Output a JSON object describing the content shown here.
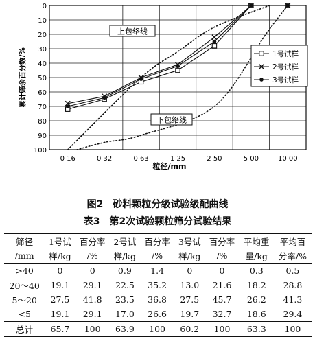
{
  "chart_data": {
    "type": "line",
    "x_categories": [
      "0 16",
      "0 32",
      "0 63",
      "1 25",
      "2 50",
      "5 00",
      "10 00"
    ],
    "xlabel": "粒径/mm",
    "ylabel": "累计筛余百分数/%",
    "y_ticks": [
      0,
      10,
      20,
      30,
      40,
      50,
      60,
      70,
      80,
      90,
      100
    ],
    "ylim": [
      0,
      100
    ],
    "y_inverted": true,
    "legend_position": "right",
    "series": [
      {
        "name": "1号试样",
        "marker": "square",
        "values": [
          72,
          65,
          53,
          45,
          28,
          0,
          0
        ]
      },
      {
        "name": "2号试样",
        "marker": "x",
        "values": [
          68,
          63,
          50,
          41,
          22,
          0,
          0
        ]
      },
      {
        "name": "3号试样",
        "marker": "dot",
        "values": [
          70,
          64,
          51,
          42,
          25,
          0,
          0
        ]
      }
    ],
    "envelope_upper": {
      "label": "上包络线",
      "x": [
        0,
        2,
        3,
        4,
        5.5
      ],
      "values": [
        100,
        50,
        32,
        15,
        0
      ]
    },
    "envelope_lower": {
      "label": "下包络线",
      "x": [
        0.25,
        1,
        2,
        4,
        5.4,
        6
      ],
      "values": [
        100,
        95,
        90,
        70,
        20,
        0
      ]
    }
  },
  "figure_caption": "图2　砂料颗粒分级试验级配曲线",
  "table_caption": "表3　第2次试验颗粒筛分试验结果",
  "table": {
    "header_row1": [
      "筛径",
      "1号试",
      "百分率",
      "2号试",
      "百分率",
      "3号试",
      "百分率",
      "平均重",
      "平均百"
    ],
    "header_row2": [
      "/mm",
      "样/kg",
      "/%",
      "样/kg",
      "/%",
      "样/kg",
      "/%",
      "量/kg",
      "分率/%"
    ],
    "rows": [
      [
        ">40",
        "0",
        "0",
        "0.9",
        "1.4",
        "0",
        "0",
        "0.3",
        "0.5"
      ],
      [
        "20～40",
        "19.1",
        "29.1",
        "22.5",
        "35.2",
        "13.0",
        "21.6",
        "18.2",
        "28.8"
      ],
      [
        "5～20",
        "27.5",
        "41.8",
        "23.5",
        "36.8",
        "27.5",
        "45.7",
        "26.2",
        "41.3"
      ],
      [
        "<5",
        "19.1",
        "29.1",
        "17.0",
        "26.6",
        "19.7",
        "32.7",
        "18.6",
        "29.4"
      ],
      [
        "总计",
        "65.7",
        "100",
        "63.9",
        "100",
        "60.2",
        "100",
        "63.3",
        "100"
      ]
    ]
  }
}
